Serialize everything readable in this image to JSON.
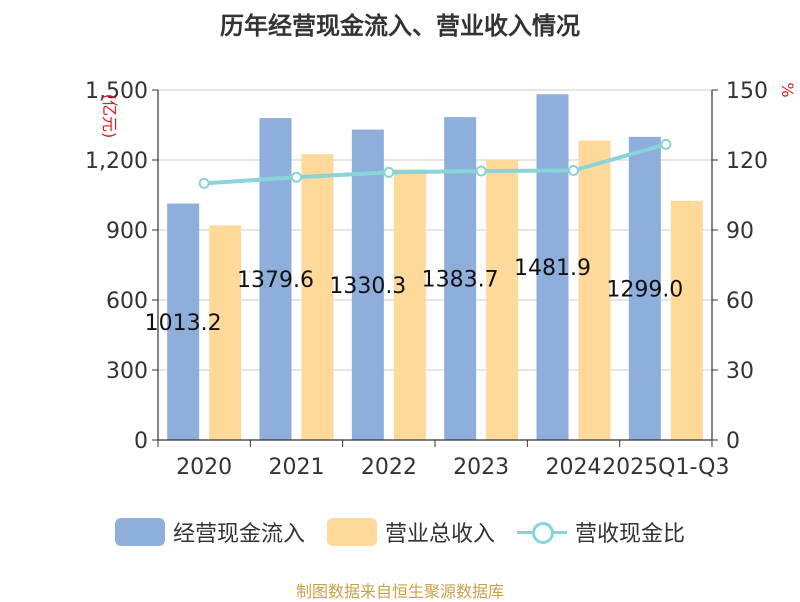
{
  "title": "历年经营现金流入、营业收入情况",
  "footer": "制图数据来自恒生聚源数据库",
  "chart_data": {
    "type": "bar",
    "categories": [
      "2020",
      "2021",
      "2022",
      "2023",
      "2024",
      "2025Q1-Q3"
    ],
    "series": [
      {
        "name": "经营现金流入",
        "type": "bar",
        "axis": "left",
        "color": "#8eaedb",
        "values": [
          1013.2,
          1379.6,
          1330.3,
          1383.7,
          1481.9,
          1299.0
        ]
      },
      {
        "name": "营业总收入",
        "type": "bar",
        "axis": "left",
        "color": "#ffd99a",
        "values": [
          920,
          1225,
          1160,
          1200,
          1283,
          1025
        ]
      },
      {
        "name": "营收现金比",
        "type": "line",
        "axis": "right",
        "color": "#88d4d8",
        "values": [
          110,
          112.6,
          114.7,
          115.3,
          115.5,
          126.7
        ]
      }
    ],
    "data_labels": [
      "1013.2",
      "1379.6",
      "1330.3",
      "1383.7",
      "1481.9",
      "1299.0"
    ],
    "y_left": {
      "label": "(亿元)",
      "ylim": [
        0,
        1500
      ],
      "ticks": [
        "0",
        "300",
        "600",
        "900",
        "1,200",
        "1,500"
      ]
    },
    "y_right": {
      "label": "%",
      "ylim": [
        0,
        150
      ],
      "ticks": [
        "0",
        "30",
        "60",
        "90",
        "120",
        "150"
      ]
    },
    "grid": true,
    "legend": "bottom"
  }
}
